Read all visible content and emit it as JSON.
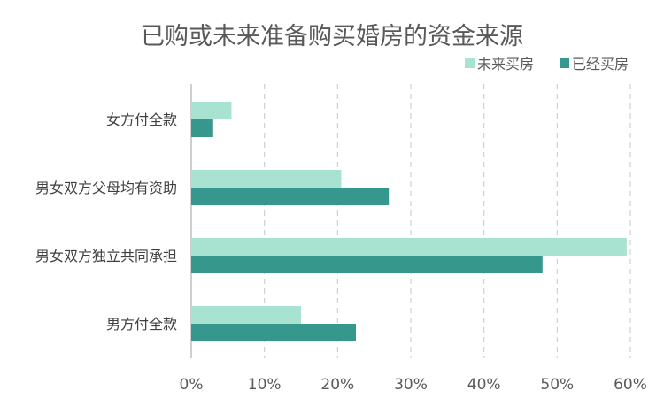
{
  "chart_data": {
    "type": "bar",
    "orientation": "horizontal",
    "title": "已购或未来准备购买婚房的资金来源",
    "categories": [
      "女方付全款",
      "男女双方父母均有资助",
      "男女双方独立共同承担",
      "男方付全款"
    ],
    "series": [
      {
        "name": "未来买房",
        "color": "#a8e3d1",
        "values": [
          5.5,
          20.5,
          59.5,
          15.0
        ]
      },
      {
        "name": "已经买房",
        "color": "#36978c",
        "values": [
          3.0,
          27.0,
          48.0,
          22.5
        ]
      }
    ],
    "xlim": [
      0,
      60
    ],
    "xticks": [
      "0%",
      "10%",
      "20%",
      "30%",
      "40%",
      "50%",
      "60%"
    ],
    "xtick_values": [
      0,
      10,
      20,
      30,
      40,
      50,
      60
    ],
    "grid": true,
    "legend_position": "top-right"
  }
}
